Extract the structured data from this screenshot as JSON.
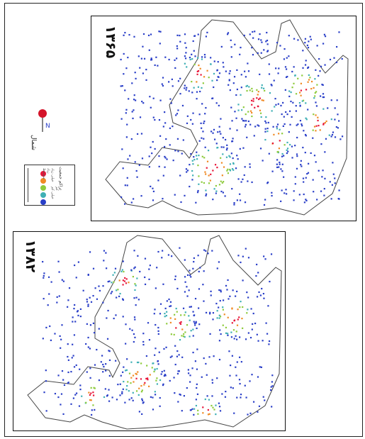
{
  "maps": [
    {
      "year_label": "۱۳۶۵"
    },
    {
      "year_label": "۱۳۸۲"
    }
  ],
  "north_arrow": {
    "letter": "N",
    "text": "شمال"
  },
  "legend": {
    "title": "تراکم جمعیت",
    "items": [
      {
        "label": "خیلی زیاد",
        "color": "#e8173a"
      },
      {
        "label": "زیاد",
        "color": "#f08a24"
      },
      {
        "label": "متوسط",
        "color": "#8ecb3c"
      },
      {
        "label": "کم",
        "color": "#3fb0b5"
      },
      {
        "label": "خیلی کم",
        "color": "#2a3fc8"
      }
    ]
  }
}
